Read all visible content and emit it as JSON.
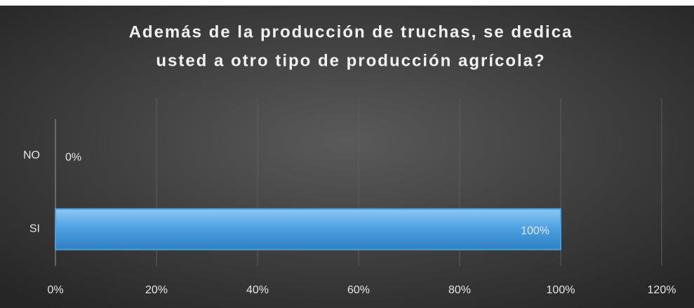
{
  "chart_data": {
    "type": "bar",
    "orientation": "horizontal",
    "title_lines": [
      "Además de la producción de truchas, se dedica",
      "usted a otro tipo de producción agrícola?"
    ],
    "categories": [
      "NO",
      "SI"
    ],
    "values": [
      0,
      100
    ],
    "value_labels": [
      "0%",
      "100%"
    ],
    "color": "#4a9fe0",
    "xlim": [
      0,
      120
    ],
    "xticks": [
      {
        "value": 0,
        "label": "0%"
      },
      {
        "value": 20,
        "label": "20%"
      },
      {
        "value": 40,
        "label": "40%"
      },
      {
        "value": 60,
        "label": "60%"
      },
      {
        "value": 80,
        "label": "80%"
      },
      {
        "value": 100,
        "label": "100%"
      },
      {
        "value": 120,
        "label": "120%"
      }
    ],
    "grid": true
  }
}
